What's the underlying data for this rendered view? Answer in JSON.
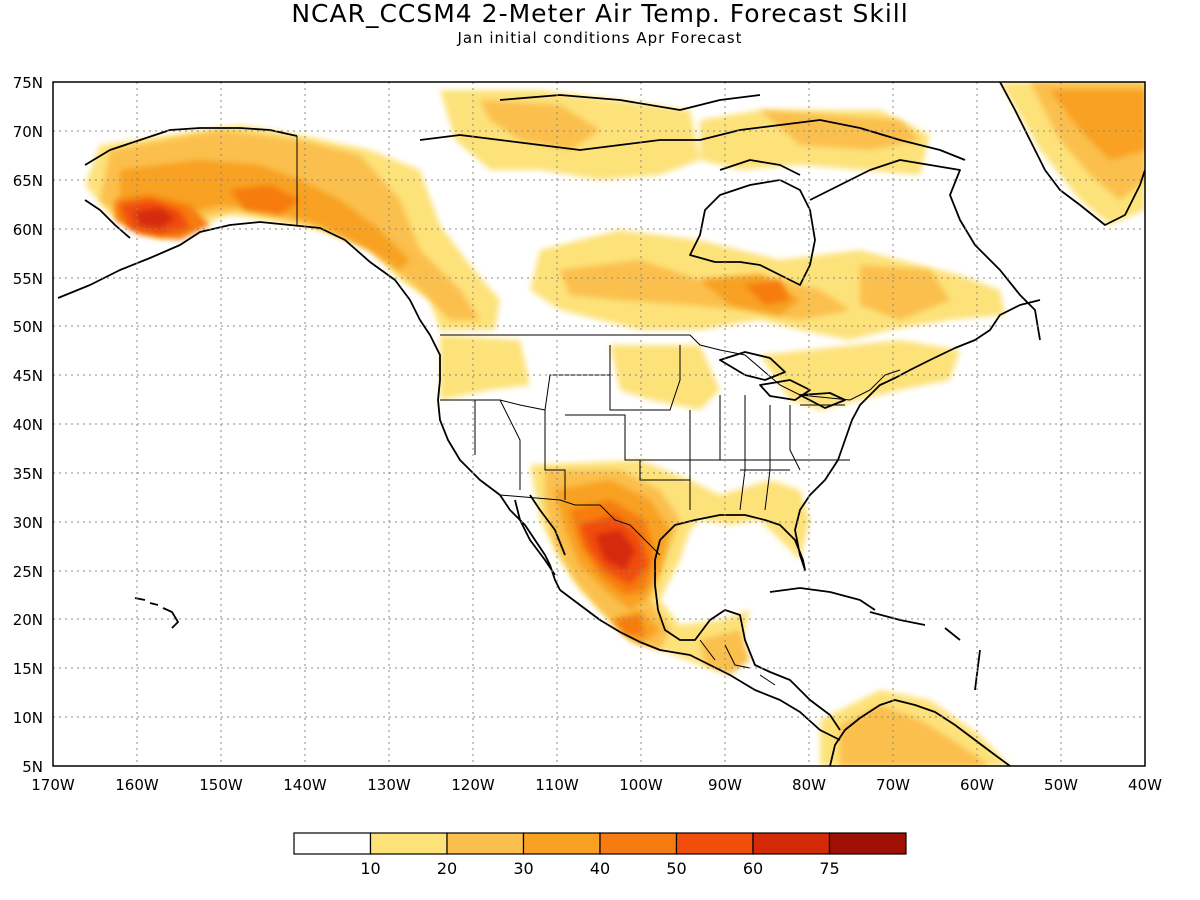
{
  "title": "NCAR_CCSM4 2-Meter Air Temp. Forecast Skill",
  "subtitle": "Jan initial conditions  Apr Forecast",
  "lat_labels": [
    "75N",
    "70N",
    "65N",
    "60N",
    "55N",
    "50N",
    "45N",
    "40N",
    "35N",
    "30N",
    "25N",
    "20N",
    "15N",
    "10N",
    "5N"
  ],
  "lon_labels": [
    "170W",
    "160W",
    "150W",
    "140W",
    "130W",
    "120W",
    "110W",
    "100W",
    "90W",
    "80W",
    "70W",
    "60W",
    "50W",
    "40W"
  ],
  "colorbar": {
    "labels": [
      "10",
      "20",
      "30",
      "40",
      "50",
      "60",
      "75"
    ],
    "colors": [
      "#ffffff",
      "#fde27a",
      "#fbbf4e",
      "#f8a123",
      "#f67b10",
      "#f04e0a",
      "#d42a08",
      "#a00f05"
    ]
  }
}
